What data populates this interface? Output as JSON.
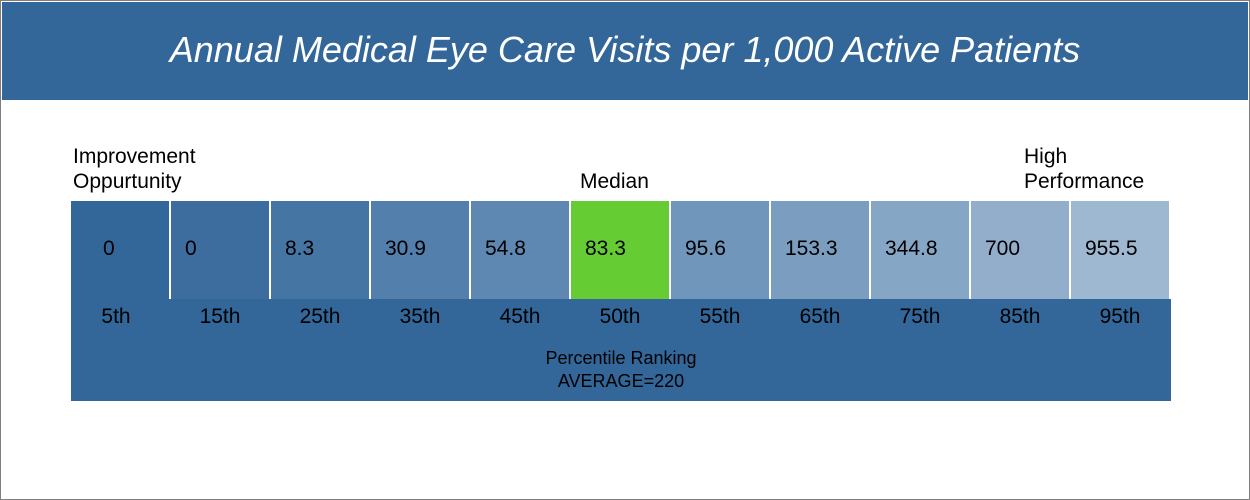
{
  "chart_data": {
    "type": "table",
    "title": "Annual Medical Eye Care Visits per 1,000 Active Patients",
    "low_label": "Improvement\nOppurtunity",
    "median_label": "Median",
    "high_label": "High\nPerformance",
    "categories": [
      "5th",
      "15th",
      "25th",
      "35th",
      "45th",
      "50th",
      "55th",
      "65th",
      "75th",
      "85th",
      "95th"
    ],
    "values": [
      "0",
      "0",
      "8.3",
      "30.9",
      "54.8",
      "83.3",
      "95.6",
      "153.3",
      "344.8",
      "700",
      "955.5"
    ],
    "highlight_index": 5,
    "xlabel": "Percentile Ranking",
    "average_label": "AVERAGE=220",
    "colors": {
      "header": "#336699",
      "band": "#336699",
      "median": "#66cc33",
      "cells": [
        "#336699",
        "#3c6d9e",
        "#4575a3",
        "#527fab",
        "#5e88b1",
        "#66cc33",
        "#7096bb",
        "#7a9dc0",
        "#86a6c6",
        "#92aecb",
        "#9fb8d1"
      ]
    }
  }
}
